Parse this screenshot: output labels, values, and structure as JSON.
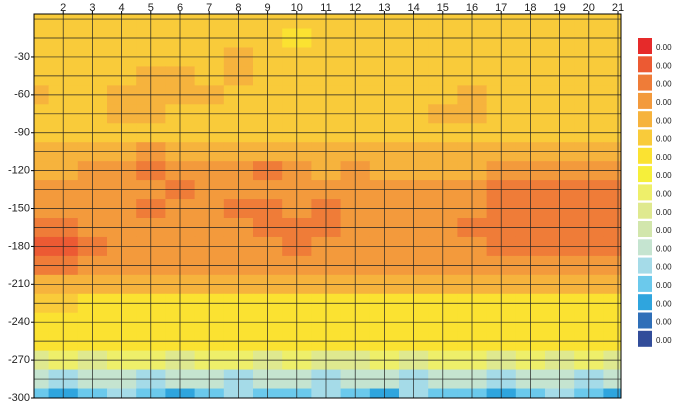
{
  "chart_data": {
    "type": "contour",
    "x": [
      1,
      2,
      3,
      4,
      5,
      6,
      7,
      8,
      9,
      10,
      11,
      12,
      13,
      14,
      15,
      16,
      17,
      18,
      19,
      20,
      21
    ],
    "y": [
      0,
      -15,
      -30,
      -45,
      -60,
      -75,
      -90,
      -105,
      -120,
      -135,
      -150,
      -165,
      -180,
      -195,
      -210,
      -225,
      -240,
      -255,
      -270,
      -285,
      -300
    ],
    "z": [
      [
        11,
        11,
        11,
        11,
        11,
        11,
        11,
        11,
        11,
        11,
        11,
        11,
        11,
        11,
        11,
        11,
        11,
        11,
        11,
        11,
        11
      ],
      [
        11,
        11,
        11,
        11,
        11,
        11,
        11,
        11,
        11,
        10,
        11,
        11,
        11,
        11,
        11,
        11,
        11,
        11,
        11,
        11,
        11
      ],
      [
        11,
        11,
        11,
        11,
        11,
        11,
        11,
        12,
        11,
        11,
        11,
        11,
        11,
        11,
        11,
        11,
        11,
        11,
        11,
        11,
        11
      ],
      [
        11,
        11,
        11,
        11,
        12,
        12,
        11,
        12,
        11,
        11,
        11,
        11,
        11,
        11,
        11,
        11,
        11,
        11,
        11,
        11,
        11
      ],
      [
        12,
        11,
        11,
        12,
        12,
        12,
        12,
        11,
        11,
        11,
        11,
        11,
        11,
        11,
        11,
        12,
        11,
        11,
        11,
        11,
        11
      ],
      [
        11,
        11,
        11,
        12,
        12,
        11,
        11,
        11,
        11,
        11,
        11,
        11,
        11,
        11,
        12,
        12,
        11,
        11,
        11,
        11,
        11
      ],
      [
        11,
        11,
        11,
        11,
        11,
        11,
        11,
        11,
        11,
        11,
        11,
        11,
        11,
        11,
        11,
        11,
        11,
        11,
        11,
        11,
        11
      ],
      [
        12,
        12,
        12,
        12,
        13,
        12,
        12,
        12,
        12,
        12,
        12,
        12,
        12,
        12,
        12,
        12,
        12,
        12,
        12,
        12,
        12
      ],
      [
        12,
        12,
        13,
        13,
        14,
        13,
        13,
        13,
        14,
        13,
        12,
        13,
        12,
        12,
        12,
        12,
        13,
        13,
        13,
        13,
        13
      ],
      [
        13,
        13,
        13,
        13,
        13,
        14,
        13,
        13,
        13,
        13,
        13,
        13,
        13,
        13,
        13,
        13,
        14,
        14,
        14,
        14,
        14
      ],
      [
        13,
        13,
        13,
        13,
        14,
        13,
        13,
        14,
        14,
        13,
        14,
        13,
        13,
        13,
        13,
        13,
        14,
        14,
        14,
        14,
        14
      ],
      [
        14,
        14,
        13,
        13,
        13,
        13,
        13,
        13,
        14,
        14,
        14,
        13,
        13,
        13,
        13,
        14,
        14,
        14,
        14,
        14,
        14
      ],
      [
        15,
        15,
        14,
        13,
        13,
        13,
        13,
        13,
        13,
        14,
        13,
        13,
        13,
        13,
        13,
        13,
        14,
        14,
        14,
        14,
        14
      ],
      [
        14,
        14,
        13,
        13,
        13,
        13,
        13,
        13,
        13,
        13,
        13,
        13,
        13,
        13,
        13,
        13,
        13,
        13,
        13,
        13,
        13
      ],
      [
        12,
        12,
        12,
        12,
        12,
        12,
        12,
        12,
        12,
        12,
        12,
        12,
        12,
        12,
        12,
        12,
        12,
        12,
        12,
        12,
        12
      ],
      [
        11,
        11,
        10,
        10,
        10,
        10,
        10,
        10,
        10,
        10,
        10,
        10,
        10,
        10,
        10,
        10,
        10,
        10,
        10,
        10,
        10
      ],
      [
        10,
        10,
        10,
        10,
        10,
        10,
        10,
        10,
        10,
        10,
        10,
        10,
        10,
        10,
        10,
        10,
        10,
        10,
        10,
        10,
        10
      ],
      [
        10,
        10,
        10,
        10,
        10,
        10,
        10,
        10,
        10,
        10,
        10,
        10,
        10,
        10,
        10,
        10,
        10,
        10,
        10,
        10,
        10
      ],
      [
        7,
        8,
        7,
        8,
        8,
        7,
        8,
        8,
        7,
        8,
        7,
        7,
        8,
        7,
        8,
        8,
        7,
        8,
        7,
        8,
        7
      ],
      [
        5,
        4,
        5,
        5,
        4,
        5,
        5,
        4,
        5,
        5,
        4,
        5,
        5,
        4,
        5,
        5,
        4,
        5,
        5,
        4,
        5
      ],
      [
        3,
        2,
        3,
        4,
        3,
        2,
        3,
        4,
        3,
        3,
        4,
        3,
        2,
        4,
        3,
        3,
        2,
        3,
        4,
        3,
        2
      ]
    ],
    "xlim": [
      1,
      21
    ],
    "ylim": [
      -300,
      4
    ],
    "xticks": [
      2,
      3,
      4,
      5,
      6,
      7,
      8,
      9,
      10,
      11,
      12,
      13,
      14,
      15,
      16,
      17,
      18,
      19,
      20,
      21
    ],
    "yticks": [
      -30,
      -60,
      -90,
      -120,
      -150,
      -180,
      -210,
      -240,
      -270,
      -300
    ],
    "grid": true,
    "legend": {
      "position": "right",
      "labels": [
        "0.00",
        "0.00",
        "0.00",
        "0.00",
        "0.00",
        "0.00",
        "0.00",
        "0.00",
        "0.00",
        "0.00",
        "0.00",
        "0.00",
        "0.00",
        "0.00",
        "0.00",
        "0.00",
        "0.00"
      ],
      "colors": [
        "#324d9a",
        "#2f6fb8",
        "#2fa5de",
        "#6bc9ec",
        "#a5dbe8",
        "#c5e4d0",
        "#d2e6ac",
        "#dfe98f",
        "#eeef6a",
        "#f6ef3a",
        "#fbe231",
        "#f9cb3a",
        "#f6b33d",
        "#f39a3c",
        "#ef7c38",
        "#ec5a33",
        "#e62a2a"
      ]
    }
  }
}
